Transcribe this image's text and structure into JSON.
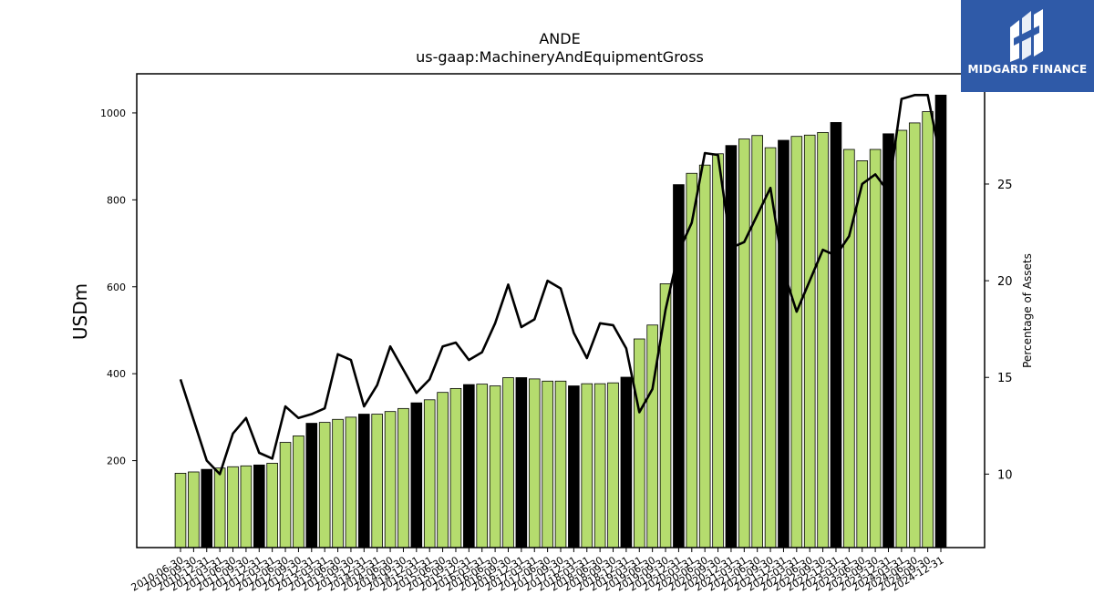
{
  "chart_data": {
    "type": "bar",
    "title": "ANDE",
    "subtitle": "us-gaap:MachineryAndEquipmentGross",
    "ylabel": "USDm",
    "ylabel_right": "Percentage of Assets",
    "ylim": [
      0,
      1090
    ],
    "ylim_right": [
      6.2,
      30.7
    ],
    "yticks": [
      200,
      400,
      600,
      800,
      1000
    ],
    "yticks_right": [
      10,
      15,
      20,
      25
    ],
    "colors": {
      "quarter_bar": "#b5dc6e",
      "annual_bar": "#000000",
      "bar_edge": "#000000",
      "line": "#000000"
    },
    "categories": [
      "2010-06-30",
      "2010-09-30",
      "2010-12-31",
      "2011-03-31",
      "2011-06-30",
      "2011-09-30",
      "2011-12-31",
      "2012-03-31",
      "2012-06-30",
      "2012-09-30",
      "2012-12-31",
      "2013-03-31",
      "2013-06-30",
      "2013-09-30",
      "2013-12-31",
      "2014-03-31",
      "2014-06-30",
      "2014-09-30",
      "2014-12-31",
      "2015-03-31",
      "2015-06-30",
      "2015-09-30",
      "2015-12-31",
      "2016-03-31",
      "2016-06-30",
      "2016-09-30",
      "2016-12-31",
      "2017-03-31",
      "2017-06-30",
      "2017-09-30",
      "2017-12-31",
      "2018-03-31",
      "2018-06-30",
      "2018-09-30",
      "2018-12-31",
      "2019-03-31",
      "2019-06-30",
      "2019-09-30",
      "2019-12-31",
      "2020-03-31",
      "2020-06-30",
      "2020-09-30",
      "2020-12-31",
      "2021-03-31",
      "2021-06-30",
      "2021-09-30",
      "2021-12-31",
      "2022-03-31",
      "2022-06-30",
      "2022-09-30",
      "2022-12-31",
      "2023-03-31",
      "2023-06-30",
      "2023-09-30",
      "2023-12-31",
      "2024-03-31",
      "2024-06-30",
      "2024-09-30",
      "2024-12-31"
    ],
    "series": [
      {
        "kind": "bar",
        "values": [
          171,
          174,
          180,
          183,
          186,
          188,
          190,
          194,
          242,
          257,
          286,
          288,
          295,
          300,
          307,
          307,
          313,
          320,
          333,
          340,
          357,
          366,
          375,
          376,
          372,
          391,
          391,
          388,
          383,
          383,
          372,
          377,
          377,
          379,
          392,
          480,
          512,
          607,
          835,
          861,
          880,
          906,
          925,
          940,
          948,
          920,
          937,
          946,
          949,
          955,
          978,
          916,
          890,
          916,
          952,
          960,
          977,
          1003,
          1041
        ],
        "annual": [
          false,
          false,
          true,
          false,
          false,
          false,
          true,
          false,
          false,
          false,
          true,
          false,
          false,
          false,
          true,
          false,
          false,
          false,
          true,
          false,
          false,
          false,
          true,
          false,
          false,
          false,
          true,
          false,
          false,
          false,
          true,
          false,
          false,
          false,
          true,
          false,
          false,
          false,
          true,
          false,
          false,
          false,
          true,
          false,
          false,
          false,
          true,
          false,
          false,
          false,
          true,
          false,
          false,
          false,
          true,
          false,
          false,
          false,
          true
        ]
      },
      {
        "kind": "line",
        "axis": "right",
        "values": [
          14.9,
          12.8,
          10.7,
          10.0,
          12.1,
          12.9,
          11.1,
          10.8,
          13.5,
          12.9,
          13.1,
          13.4,
          16.2,
          15.9,
          13.5,
          14.6,
          16.6,
          15.4,
          14.2,
          14.9,
          16.6,
          16.8,
          15.9,
          16.3,
          17.8,
          19.8,
          17.6,
          18.0,
          20.0,
          19.6,
          17.3,
          16.0,
          17.8,
          17.7,
          16.5,
          13.2,
          14.4,
          18.5,
          21.5,
          23.0,
          26.6,
          26.5,
          21.7,
          22.0,
          23.4,
          24.8,
          20.5,
          18.4,
          20.0,
          21.6,
          21.3,
          22.3,
          25.0,
          25.5,
          24.6,
          29.4,
          29.6,
          29.6,
          26.2
        ]
      }
    ]
  },
  "logo": {
    "text": "MIDGARD FINANCE"
  }
}
